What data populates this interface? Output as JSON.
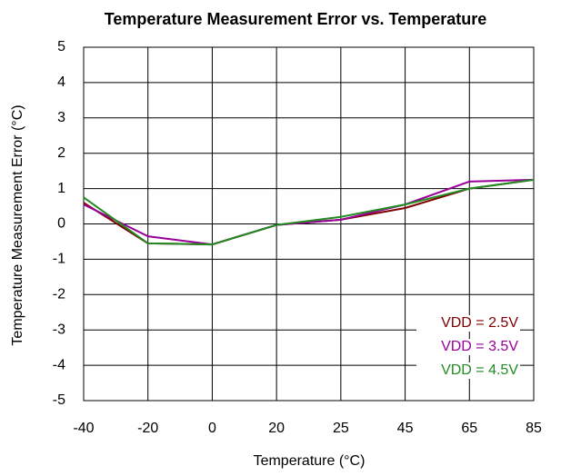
{
  "chart_data": {
    "type": "line",
    "title": "Temperature Measurement Error vs. Temperature",
    "x_label": "Temperature (°C)",
    "y_label": "Temperature Measurement Error (°C)",
    "categories": [
      "-40",
      "-20",
      "0",
      "20",
      "25",
      "45",
      "65",
      "85"
    ],
    "series": [
      {
        "name": "VDD = 2.5V",
        "color": "#800000",
        "values": [
          0.6,
          -0.55,
          -0.58,
          -0.03,
          0.12,
          0.45,
          1.0,
          1.25
        ]
      },
      {
        "name": "VDD = 3.5V",
        "color": "#990099",
        "values": [
          0.55,
          -0.35,
          -0.58,
          -0.03,
          0.12,
          0.55,
          1.2,
          1.25
        ]
      },
      {
        "name": "VDD = 4.5V",
        "color": "#228b22",
        "values": [
          0.75,
          -0.55,
          -0.58,
          -0.03,
          0.2,
          0.55,
          1.0,
          1.25
        ]
      }
    ],
    "ylim": [
      -5,
      5
    ],
    "yticks": [
      -5,
      -4,
      -3,
      -2,
      -1,
      0,
      1,
      2,
      3,
      4,
      5
    ],
    "grid": true,
    "legend": "lower right"
  }
}
